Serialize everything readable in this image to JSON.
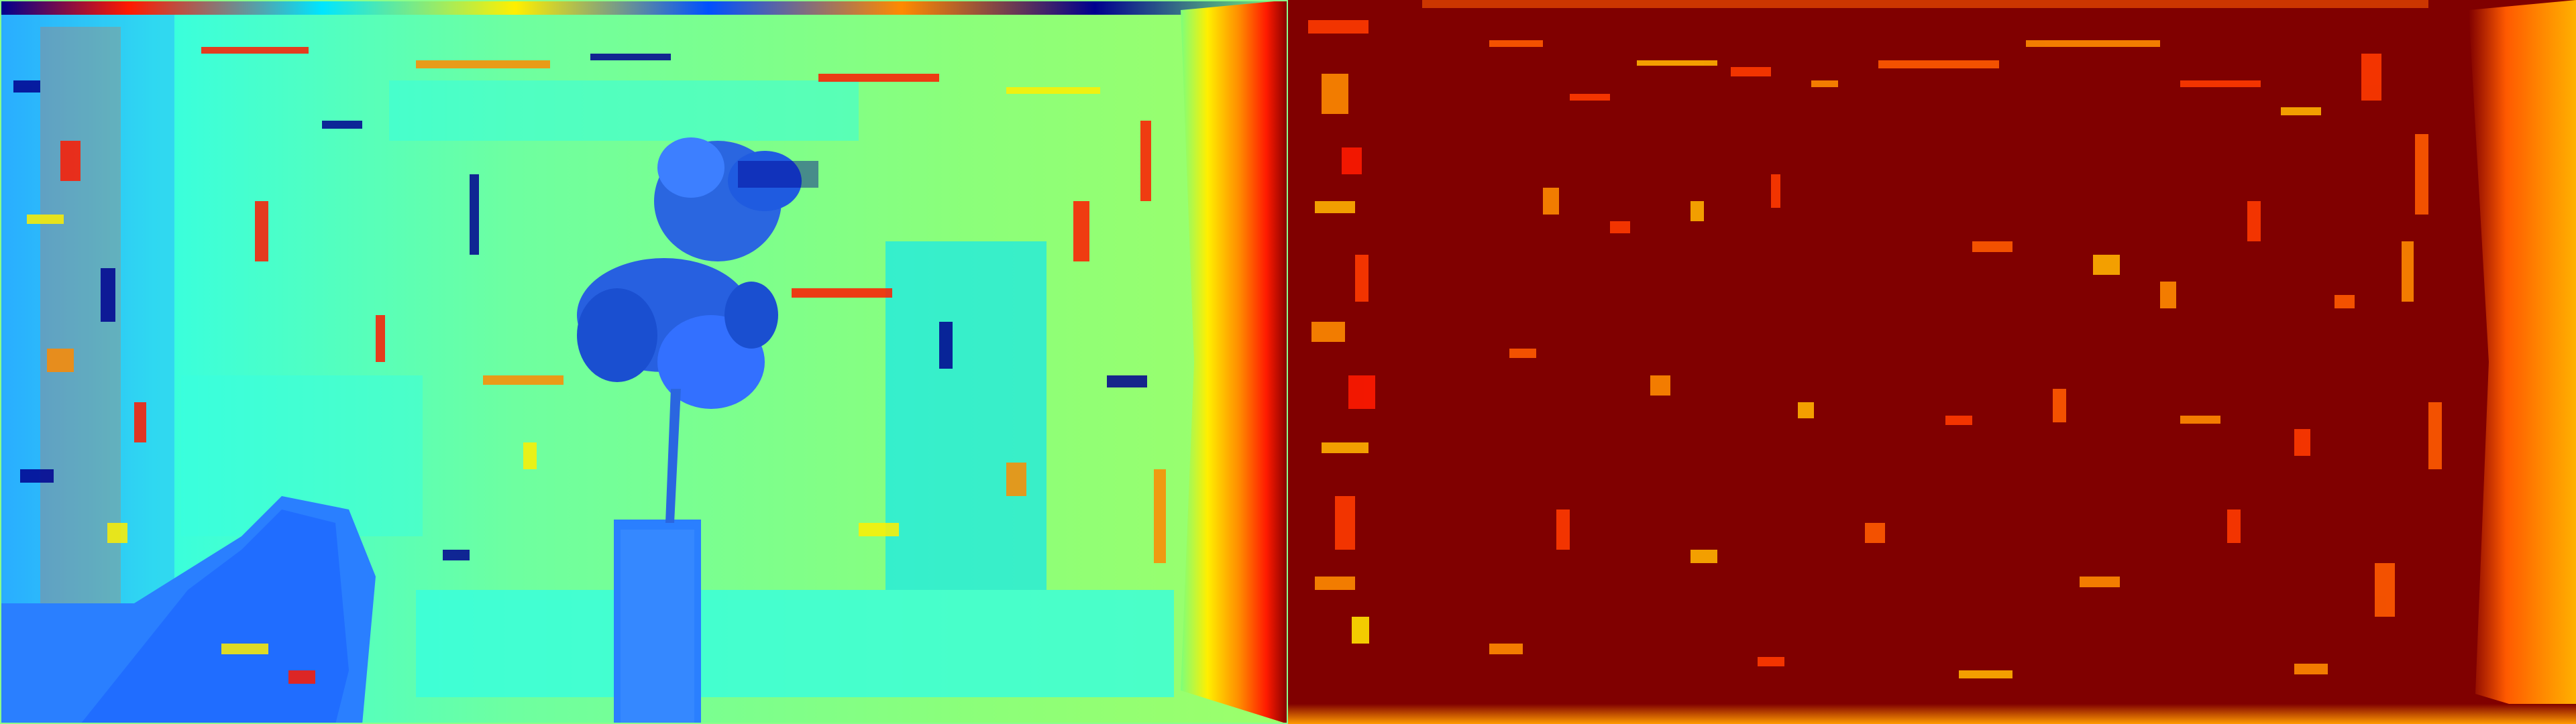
{
  "panels": [
    {
      "id": "disparity-map",
      "colormap": "jet",
      "palette": {
        "dark_blue": "#00008f",
        "blue": "#0050ff",
        "mid_blue": "#2a7fff",
        "cyan": "#00e5ff",
        "light_cyan": "#37ffdf",
        "green": "#7dff7a",
        "yellow": "#ffef00",
        "orange": "#ff8a00",
        "red": "#ff1a00",
        "dark_red": "#800000",
        "border": "#8bff8b"
      }
    },
    {
      "id": "error-map",
      "colormap": "hot",
      "palette": {
        "dark_red": "#800000",
        "red": "#ff1a00",
        "orange": "#ff8a00",
        "yellow": "#ffe100",
        "bright": "#ffff66"
      }
    }
  ]
}
